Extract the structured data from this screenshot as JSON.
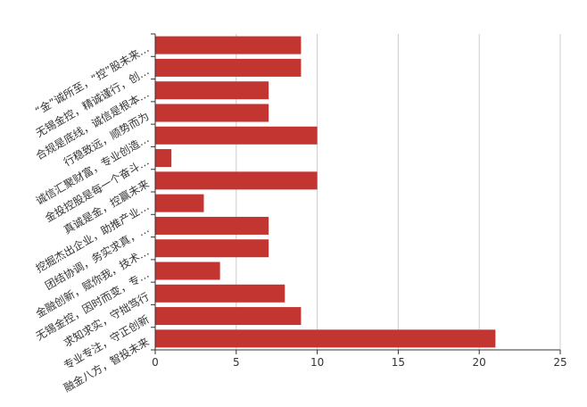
{
  "chart_data": {
    "type": "hbar",
    "color": "#c23531",
    "grid": true,
    "categories": [
      "“金”诚所至，“控”股未来…",
      "无锡金控，精诚谨行，创…",
      "合规是底线，诚信是根本…",
      "行稳致远，顺势而为",
      "诚信汇聚财富，专业创造…",
      "金投控股是每一个奋斗…",
      "真诚是金，控赢未来",
      "挖掘杰出企业，助推产业…",
      "团结协调，务实求真，…",
      "金融创新，赋你我，技术…",
      "无锡金控，因时而变，专…",
      "求知求实，守拙笃行",
      "专业专注，守正创新",
      "融金八方，智投未来"
    ],
    "values": [
      9,
      9,
      7,
      7,
      10,
      1,
      10,
      3,
      7,
      7,
      4,
      8,
      9,
      21
    ],
    "xlim": [
      0,
      25
    ],
    "xticks": [
      0,
      5,
      10,
      15,
      20,
      25
    ]
  }
}
